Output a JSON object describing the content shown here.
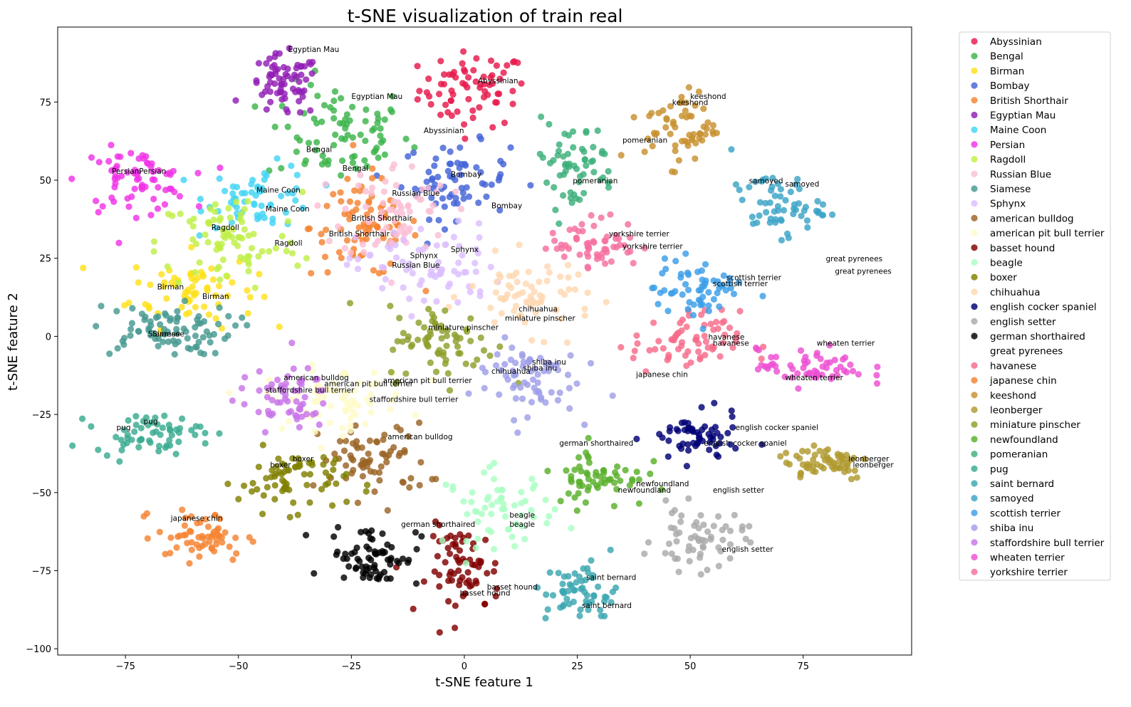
{
  "chart_data": {
    "type": "scatter",
    "title": "t-SNE visualization of train real",
    "xlabel": "t-SNE feature 1",
    "ylabel": "t-SNE feature 2",
    "xlim": [
      -90,
      99
    ],
    "ylim": [
      -102,
      99
    ],
    "xticks": [
      -75,
      -50,
      -25,
      0,
      25,
      50,
      75
    ],
    "yticks": [
      -100,
      -75,
      -50,
      -25,
      0,
      25,
      50,
      75
    ],
    "grid": false,
    "legend_position": "outside-right",
    "series": [
      {
        "name": "Abyssinian",
        "color": "#e6194b",
        "center": [
          2,
          79
        ],
        "spread": [
          6,
          6
        ],
        "n": 70,
        "labels": [
          {
            "text": "Abyssinian",
            "x": 3,
            "y": 81
          },
          {
            "text": "Abyssinian",
            "x": -9,
            "y": 65
          }
        ]
      },
      {
        "name": "Bengal",
        "color": "#3cb44b",
        "center": [
          -28,
          65
        ],
        "spread": [
          8,
          8
        ],
        "n": 80,
        "labels": [
          {
            "text": "Egyptian Mau",
            "x": -25,
            "y": 76
          },
          {
            "text": "Bengal",
            "x": -35,
            "y": 59
          },
          {
            "text": "Bengal",
            "x": -27,
            "y": 53
          }
        ]
      },
      {
        "name": "Birman",
        "color": "#ffe119",
        "center": [
          -60,
          15
        ],
        "spread": [
          7,
          6
        ],
        "n": 70,
        "labels": [
          {
            "text": "Birman",
            "x": -68,
            "y": 15
          },
          {
            "text": "Birman",
            "x": -58,
            "y": 12
          }
        ]
      },
      {
        "name": "Bombay",
        "color": "#4363d8",
        "center": [
          -2,
          50
        ],
        "spread": [
          6,
          6
        ],
        "n": 70,
        "labels": [
          {
            "text": "Bombay",
            "x": -3,
            "y": 51
          },
          {
            "text": "Bombay",
            "x": 6,
            "y": 41
          }
        ]
      },
      {
        "name": "British Shorthair",
        "color": "#f58231",
        "center": [
          -22,
          35
        ],
        "spread": [
          6,
          8
        ],
        "n": 80,
        "labels": [
          {
            "text": "British Shorthair",
            "x": -25,
            "y": 37
          },
          {
            "text": "British Shorthair",
            "x": -30,
            "y": 32
          }
        ]
      },
      {
        "name": "Egyptian Mau",
        "color": "#911eb4",
        "center": [
          -40,
          80
        ],
        "spread": [
          4,
          5
        ],
        "n": 70,
        "labels": [
          {
            "text": "Egyptian Mau",
            "x": -39,
            "y": 91
          }
        ]
      },
      {
        "name": "Maine Coon",
        "color": "#42d4f4",
        "center": [
          -45,
          45
        ],
        "spread": [
          6,
          5
        ],
        "n": 60,
        "labels": [
          {
            "text": "Maine Coon",
            "x": -46,
            "y": 46
          },
          {
            "text": "Maine Coon",
            "x": -44,
            "y": 40
          }
        ]
      },
      {
        "name": "Persian",
        "color": "#f032e6",
        "center": [
          -73,
          50
        ],
        "spread": [
          6,
          5
        ],
        "n": 70,
        "labels": [
          {
            "text": "Persian",
            "x": -78,
            "y": 52
          },
          {
            "text": "Persian",
            "x": -72,
            "y": 52
          }
        ]
      },
      {
        "name": "Ragdoll",
        "color": "#bfef45",
        "center": [
          -52,
          30
        ],
        "spread": [
          8,
          8
        ],
        "n": 80,
        "labels": [
          {
            "text": "Ragdoll",
            "x": -56,
            "y": 34
          },
          {
            "text": "Ragdoll",
            "x": -42,
            "y": 29
          }
        ]
      },
      {
        "name": "Russian Blue",
        "color": "#fabed4",
        "center": [
          -15,
          40
        ],
        "spread": [
          6,
          8
        ],
        "n": 70,
        "labels": [
          {
            "text": "Russian Blue",
            "x": -16,
            "y": 45
          },
          {
            "text": "Russian Blue",
            "x": -16,
            "y": 22
          }
        ]
      },
      {
        "name": "Siamese",
        "color": "#469990",
        "center": [
          -67,
          2
        ],
        "spread": [
          8,
          4
        ],
        "n": 80,
        "labels": [
          {
            "text": "Siamese",
            "x": -70,
            "y": 0
          },
          {
            "text": "Siamese",
            "x": -69,
            "y": 0
          }
        ]
      },
      {
        "name": "Sphynx",
        "color": "#dcbeff",
        "center": [
          -8,
          22
        ],
        "spread": [
          8,
          7
        ],
        "n": 70,
        "labels": [
          {
            "text": "Sphynx",
            "x": -3,
            "y": 27
          },
          {
            "text": "Sphynx",
            "x": -12,
            "y": 25
          }
        ]
      },
      {
        "name": "american bulldog",
        "color": "#9a6324",
        "center": [
          -20,
          -40
        ],
        "spread": [
          6,
          6
        ],
        "n": 70,
        "labels": [
          {
            "text": "american bulldog",
            "x": -17,
            "y": -33
          },
          {
            "text": "american bulldog",
            "x": -40,
            "y": -14
          }
        ]
      },
      {
        "name": "american pit bull terrier",
        "color": "#fffac8",
        "center": [
          -28,
          -20
        ],
        "spread": [
          8,
          5
        ],
        "n": 70,
        "labels": [
          {
            "text": "american pit bull terrier",
            "x": -31,
            "y": -16
          },
          {
            "text": "american pit bull terrier",
            "x": -18,
            "y": -15
          }
        ]
      },
      {
        "name": "basset hound",
        "color": "#800000",
        "center": [
          0,
          -75
        ],
        "spread": [
          4,
          7
        ],
        "n": 70,
        "labels": [
          {
            "text": "basset hound",
            "x": 5,
            "y": -81
          },
          {
            "text": "basset hound",
            "x": -1,
            "y": -83
          }
        ]
      },
      {
        "name": "beagle",
        "color": "#aaffc3",
        "center": [
          8,
          -55
        ],
        "spread": [
          6,
          6
        ],
        "n": 60,
        "labels": [
          {
            "text": "beagle",
            "x": 10,
            "y": -58
          },
          {
            "text": "beagle",
            "x": 10,
            "y": -61
          }
        ]
      },
      {
        "name": "boxer",
        "color": "#808000",
        "center": [
          -38,
          -46
        ],
        "spread": [
          6,
          5
        ],
        "n": 70,
        "labels": [
          {
            "text": "boxer",
            "x": -38,
            "y": -40
          },
          {
            "text": "boxer",
            "x": -43,
            "y": -42
          }
        ]
      },
      {
        "name": "chihuahua",
        "color": "#ffd8b1",
        "center": [
          15,
          13
        ],
        "spread": [
          7,
          6
        ],
        "n": 70,
        "labels": [
          {
            "text": "chihuahua",
            "x": 12,
            "y": 8
          },
          {
            "text": "miniature pinscher",
            "x": 9,
            "y": 5
          },
          {
            "text": "chihuahua",
            "x": 6,
            "y": -12
          }
        ]
      },
      {
        "name": "english cocker spaniel",
        "color": "#000075",
        "center": [
          51,
          -33
        ],
        "spread": [
          5,
          4
        ],
        "n": 60,
        "labels": [
          {
            "text": "english cocker spaniel",
            "x": 60,
            "y": -30
          },
          {
            "text": "english cocker spaniel",
            "x": 53,
            "y": -35
          }
        ]
      },
      {
        "name": "english setter",
        "color": "#a9a9a9",
        "center": [
          52,
          -65
        ],
        "spread": [
          5,
          5
        ],
        "n": 60,
        "labels": [
          {
            "text": "english setter",
            "x": 55,
            "y": -50
          },
          {
            "text": "english setter",
            "x": 57,
            "y": -69
          }
        ]
      },
      {
        "name": "german shorthaired",
        "color": "#000000",
        "center": [
          -20,
          -70
        ],
        "spread": [
          5,
          5
        ],
        "n": 70,
        "labels": [
          {
            "text": "german shorthaired",
            "x": -14,
            "y": -61
          },
          {
            "text": "german shorthaired",
            "x": 21,
            "y": -35
          }
        ]
      },
      {
        "name": "great pyrenees",
        "color": "#ffffff",
        "center": [
          80,
          20
        ],
        "spread": [
          4,
          3
        ],
        "n": 30,
        "labels": [
          {
            "text": "great pyrenees",
            "x": 80,
            "y": 24
          },
          {
            "text": "great pyrenees",
            "x": 82,
            "y": 20
          }
        ]
      },
      {
        "name": "havanese",
        "color": "#f76b8a",
        "center": [
          49,
          -2
        ],
        "spread": [
          6,
          5
        ],
        "n": 70,
        "labels": [
          {
            "text": "havanese",
            "x": 54,
            "y": -1
          },
          {
            "text": "havanese",
            "x": 55,
            "y": -3
          }
        ]
      },
      {
        "name": "japanese chin",
        "color": "#f58231",
        "center": [
          -58,
          -64
        ],
        "spread": [
          5,
          4
        ],
        "n": 60,
        "labels": [
          {
            "text": "japanese chin",
            "x": -65,
            "y": -59
          },
          {
            "text": "japanese chin",
            "x": 38,
            "y": -13
          }
        ]
      },
      {
        "name": "keeshond",
        "color": "#c8902d",
        "center": [
          48,
          67
        ],
        "spread": [
          4,
          6
        ],
        "n": 60,
        "labels": [
          {
            "text": "keeshond",
            "x": 50,
            "y": 76
          },
          {
            "text": "keeshond",
            "x": 46,
            "y": 74
          }
        ]
      },
      {
        "name": "leonberger",
        "color": "#b09a30",
        "center": [
          80,
          -40
        ],
        "spread": [
          5,
          3
        ],
        "n": 60,
        "labels": [
          {
            "text": "leonberger",
            "x": 85,
            "y": -40
          },
          {
            "text": "leonberger",
            "x": 86,
            "y": -42
          }
        ]
      },
      {
        "name": "miniature pinscher",
        "color": "#8f9f2c",
        "center": [
          -5,
          -2
        ],
        "spread": [
          6,
          6
        ],
        "n": 70,
        "labels": [
          {
            "text": "miniature pinscher",
            "x": -8,
            "y": 2
          }
        ]
      },
      {
        "name": "newfoundland",
        "color": "#59b02b",
        "center": [
          30,
          -45
        ],
        "spread": [
          5,
          5
        ],
        "n": 60,
        "labels": [
          {
            "text": "newfoundland",
            "x": 38,
            "y": -48
          },
          {
            "text": "newfoundland",
            "x": 34,
            "y": -50
          }
        ]
      },
      {
        "name": "pomeranian",
        "color": "#3cb07a",
        "center": [
          24,
          55
        ],
        "spread": [
          5,
          7
        ],
        "n": 60,
        "labels": [
          {
            "text": "pomeranian",
            "x": 35,
            "y": 62
          },
          {
            "text": "pomeranian",
            "x": 24,
            "y": 49
          }
        ]
      },
      {
        "name": "pug",
        "color": "#38ab90",
        "center": [
          -70,
          -31
        ],
        "spread": [
          6,
          3
        ],
        "n": 60,
        "labels": [
          {
            "text": "pug",
            "x": -77,
            "y": -30
          },
          {
            "text": "pug",
            "x": -71,
            "y": -28
          }
        ]
      },
      {
        "name": "saint bernard",
        "color": "#3aa6b0",
        "center": [
          26,
          -82
        ],
        "spread": [
          4,
          5
        ],
        "n": 60,
        "labels": [
          {
            "text": "saint bernard",
            "x": 27,
            "y": -78
          },
          {
            "text": "saint bernard",
            "x": 26,
            "y": -87
          }
        ]
      },
      {
        "name": "samoyed",
        "color": "#3aa3c6",
        "center": [
          69,
          42
        ],
        "spread": [
          5,
          5
        ],
        "n": 60,
        "labels": [
          {
            "text": "samoyed",
            "x": 63,
            "y": 49
          },
          {
            "text": "samoyed",
            "x": 71,
            "y": 48
          }
        ]
      },
      {
        "name": "scottish terrier",
        "color": "#3a9de8",
        "center": [
          52,
          15
        ],
        "spread": [
          5,
          5
        ],
        "n": 60,
        "labels": [
          {
            "text": "scottish terrier",
            "x": 58,
            "y": 18
          },
          {
            "text": "scottish terrier",
            "x": 55,
            "y": 16
          }
        ]
      },
      {
        "name": "shiba inu",
        "color": "#9f9fe8",
        "center": [
          13,
          -13
        ],
        "spread": [
          6,
          6
        ],
        "n": 70,
        "labels": [
          {
            "text": "shiba inu",
            "x": 15,
            "y": -9
          },
          {
            "text": "shiba inu",
            "x": 13,
            "y": -11
          }
        ]
      },
      {
        "name": "staffordshire bull terrier",
        "color": "#c874e8",
        "center": [
          -40,
          -20
        ],
        "spread": [
          5,
          5
        ],
        "n": 60,
        "labels": [
          {
            "text": "staffordshire bull terrier",
            "x": -44,
            "y": -18
          },
          {
            "text": "staffordshire bull terrier",
            "x": -21,
            "y": -21
          }
        ]
      },
      {
        "name": "wheaten terrier",
        "color": "#ed4fd3",
        "center": [
          77,
          -10
        ],
        "spread": [
          6,
          3
        ],
        "n": 60,
        "labels": [
          {
            "text": "wheaten terrier",
            "x": 78,
            "y": -3
          },
          {
            "text": "wheaten terrier",
            "x": 71,
            "y": -14
          }
        ]
      },
      {
        "name": "yorkshire terrier",
        "color": "#f56fa0",
        "center": [
          29,
          30
        ],
        "spread": [
          5,
          4
        ],
        "n": 60,
        "labels": [
          {
            "text": "yorkshire terrier",
            "x": 32,
            "y": 32
          },
          {
            "text": "yorkshire terrier",
            "x": 35,
            "y": 28
          }
        ]
      }
    ]
  }
}
